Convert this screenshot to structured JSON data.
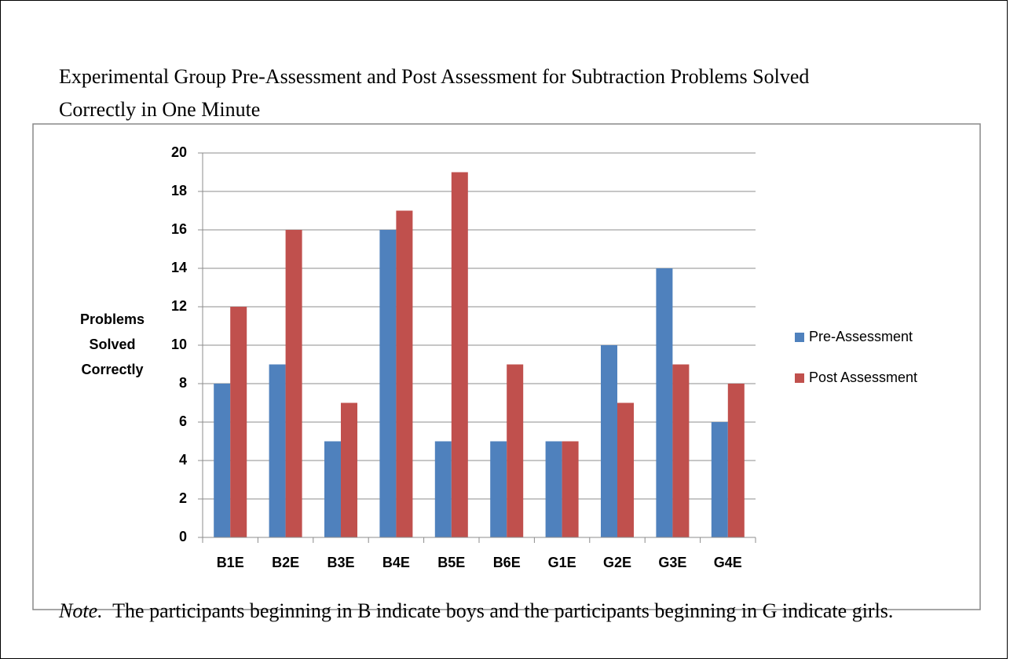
{
  "chart_data": {
    "type": "bar",
    "title": "Experimental Group Pre-Assessment and Post Assessment for Subtraction Problems Solved Correctly in One Minute",
    "y_label": "Problems Solved Correctly",
    "categories": [
      "B1E",
      "B2E",
      "B3E",
      "B4E",
      "B5E",
      "B6E",
      "G1E",
      "G2E",
      "G3E",
      "G4E"
    ],
    "series": [
      {
        "name": "Pre-Assessment",
        "color": "#4f81bd",
        "values": [
          8,
          9,
          5,
          16,
          5,
          5,
          5,
          10,
          14,
          6
        ]
      },
      {
        "name": "Post Assessment",
        "color": "#c0504d",
        "values": [
          12,
          16,
          7,
          17,
          19,
          9,
          5,
          7,
          9,
          8
        ]
      }
    ],
    "ylim": [
      0,
      20
    ],
    "yticks": [
      0,
      2,
      4,
      6,
      8,
      10,
      12,
      14,
      16,
      18,
      20
    ],
    "grid": true,
    "legend": "right",
    "note_label": "Note.",
    "note": "The participants beginning in B indicate boys and the participants beginning in G indicate girls."
  }
}
